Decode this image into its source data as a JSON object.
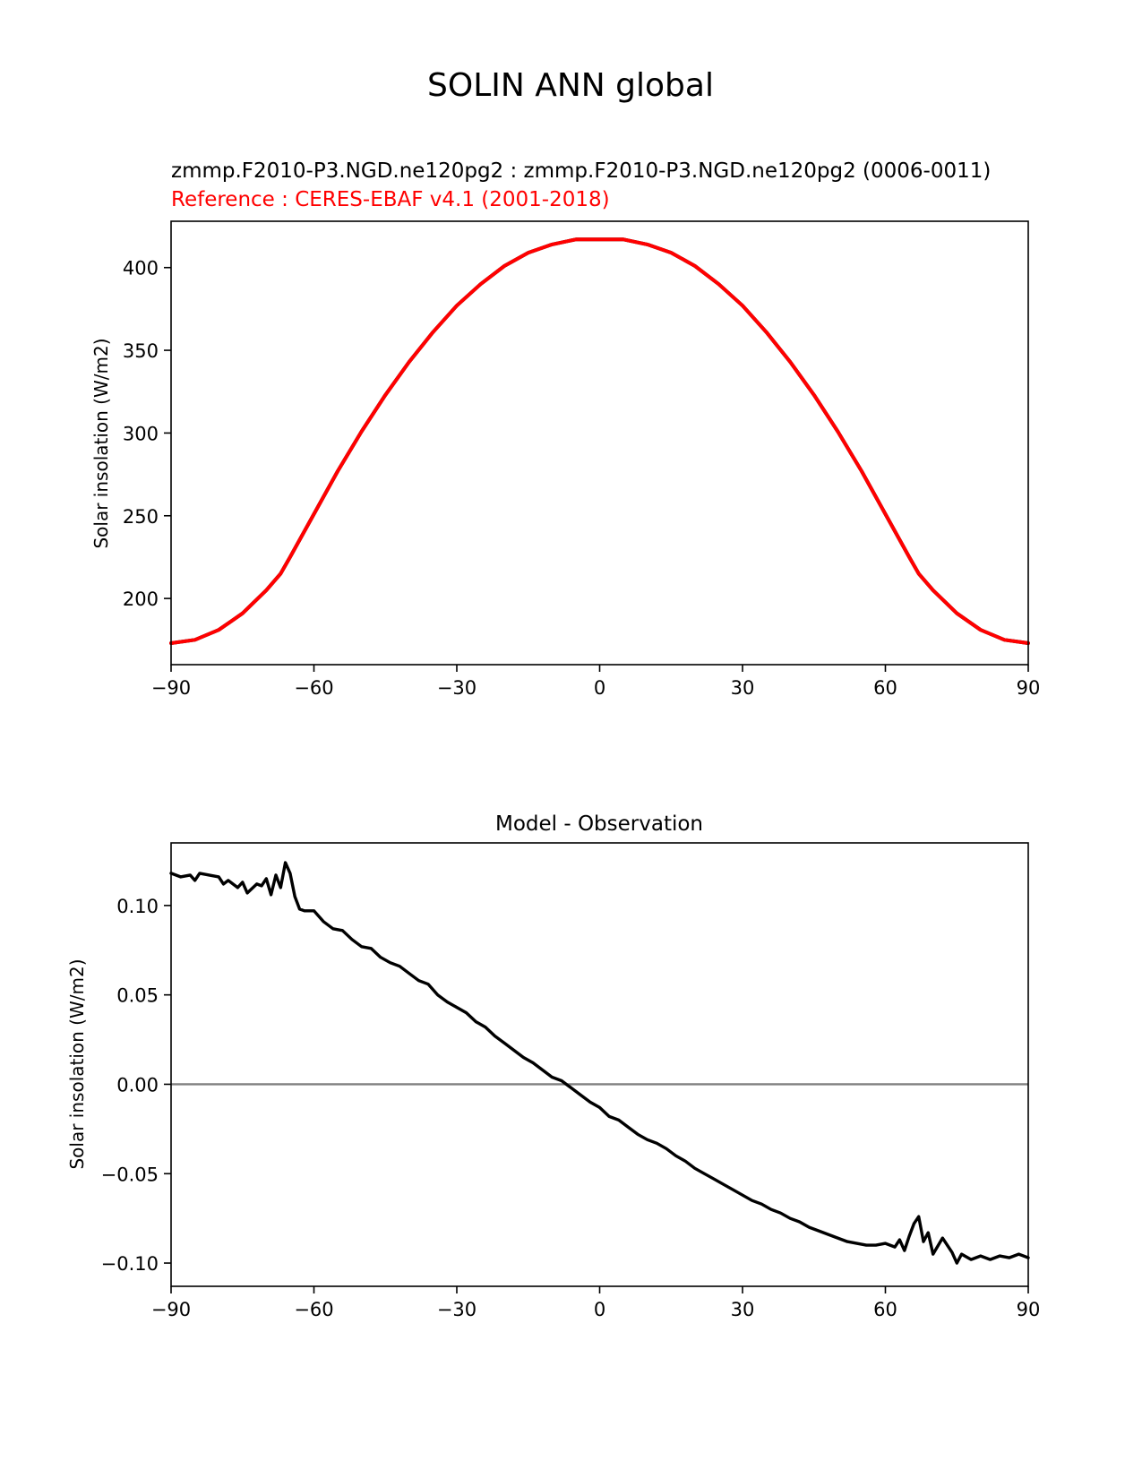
{
  "figure": {
    "title": "SOLIN ANN global"
  },
  "chart_data": [
    {
      "type": "line",
      "title_lines": [
        {
          "text": "zmmp.F2010-P3.NGD.ne120pg2 : zmmp.F2010-P3.NGD.ne120pg2 (0006-0011)",
          "color": "#000000"
        },
        {
          "text": "Reference : CERES-EBAF v4.1 (2001-2018)",
          "color": "#ff0000"
        }
      ],
      "xlabel": "",
      "ylabel": "Solar insolation (W/m2)",
      "xlim": [
        -90,
        90
      ],
      "ylim": [
        160,
        428
      ],
      "xticks": [
        -90,
        -60,
        -30,
        0,
        30,
        60,
        90
      ],
      "xtick_labels": [
        "−90",
        "−60",
        "−30",
        "0",
        "30",
        "60",
        "90"
      ],
      "yticks": [
        200,
        250,
        300,
        350,
        400
      ],
      "ytick_labels": [
        "200",
        "250",
        "300",
        "350",
        "400"
      ],
      "grid": false,
      "series": [
        {
          "color": "#000000",
          "x": [
            -90,
            -85,
            -80,
            -75,
            -70,
            -67,
            -65,
            -60,
            -55,
            -50,
            -45,
            -40,
            -35,
            -30,
            -25,
            -20,
            -15,
            -10,
            -5,
            0,
            5,
            10,
            15,
            20,
            25,
            30,
            35,
            40,
            45,
            50,
            55,
            60,
            65,
            67,
            70,
            75,
            80,
            85,
            90
          ],
          "y": [
            173,
            175,
            181,
            191,
            205,
            215,
            225,
            251,
            277,
            301,
            323,
            343,
            361,
            377,
            390,
            401,
            409,
            414,
            417,
            417,
            417,
            414,
            409,
            401,
            390,
            377,
            361,
            343,
            323,
            301,
            277,
            251,
            225,
            215,
            205,
            191,
            181,
            175,
            173
          ]
        },
        {
          "color": "#ff0000",
          "x": [
            -90,
            -85,
            -80,
            -75,
            -70,
            -67,
            -65,
            -60,
            -55,
            -50,
            -45,
            -40,
            -35,
            -30,
            -25,
            -20,
            -15,
            -10,
            -5,
            0,
            5,
            10,
            15,
            20,
            25,
            30,
            35,
            40,
            45,
            50,
            55,
            60,
            65,
            67,
            70,
            75,
            80,
            85,
            90
          ],
          "y": [
            173,
            175,
            181,
            191,
            205,
            215,
            225,
            251,
            277,
            301,
            323,
            343,
            361,
            377,
            390,
            401,
            409,
            414,
            417,
            417,
            417,
            414,
            409,
            401,
            390,
            377,
            361,
            343,
            323,
            301,
            277,
            251,
            225,
            215,
            205,
            191,
            181,
            175,
            173
          ]
        }
      ]
    },
    {
      "type": "line",
      "title": "Model - Observation",
      "xlabel": "",
      "ylabel": "Solar insolation (W/m2)",
      "xlim": [
        -90,
        90
      ],
      "ylim": [
        -0.113,
        0.135
      ],
      "xticks": [
        -90,
        -60,
        -30,
        0,
        30,
        60,
        90
      ],
      "xtick_labels": [
        "−90",
        "−60",
        "−30",
        "0",
        "30",
        "60",
        "90"
      ],
      "yticks": [
        -0.1,
        -0.05,
        0.0,
        0.05,
        0.1
      ],
      "ytick_labels": [
        "−0.10",
        "−0.05",
        "0.00",
        "0.05",
        "0.10"
      ],
      "grid": false,
      "zero_line": {
        "y": 0,
        "color": "#808080"
      },
      "series": [
        {
          "color": "#000000",
          "x": [
            -90,
            -88,
            -86,
            -85,
            -84,
            -82,
            -80,
            -79,
            -78,
            -76,
            -75,
            -74,
            -72,
            -71,
            -70,
            -69,
            -68,
            -67,
            -66,
            -65,
            -64,
            -63,
            -62,
            -60,
            -58,
            -56,
            -54,
            -52,
            -50,
            -48,
            -46,
            -44,
            -42,
            -40,
            -38,
            -36,
            -34,
            -32,
            -30,
            -28,
            -26,
            -24,
            -22,
            -20,
            -18,
            -16,
            -14,
            -12,
            -10,
            -8,
            -7,
            -6,
            -4,
            -2,
            0,
            2,
            4,
            6,
            8,
            10,
            12,
            14,
            16,
            18,
            20,
            22,
            24,
            26,
            28,
            30,
            32,
            34,
            36,
            38,
            40,
            42,
            44,
            46,
            48,
            50,
            52,
            54,
            56,
            58,
            60,
            62,
            63,
            64,
            65,
            66,
            67,
            68,
            69,
            70,
            72,
            74,
            75,
            76,
            78,
            80,
            82,
            84,
            86,
            88,
            90
          ],
          "y": [
            0.118,
            0.116,
            0.117,
            0.114,
            0.118,
            0.117,
            0.116,
            0.112,
            0.114,
            0.11,
            0.113,
            0.107,
            0.112,
            0.111,
            0.115,
            0.106,
            0.117,
            0.11,
            0.124,
            0.118,
            0.105,
            0.098,
            0.097,
            0.097,
            0.091,
            0.087,
            0.086,
            0.081,
            0.077,
            0.076,
            0.071,
            0.068,
            0.066,
            0.062,
            0.058,
            0.056,
            0.05,
            0.046,
            0.043,
            0.04,
            0.035,
            0.032,
            0.027,
            0.023,
            0.019,
            0.015,
            0.012,
            0.008,
            0.004,
            0.002,
            0.0,
            -0.002,
            -0.006,
            -0.01,
            -0.013,
            -0.018,
            -0.02,
            -0.024,
            -0.028,
            -0.031,
            -0.033,
            -0.036,
            -0.04,
            -0.043,
            -0.047,
            -0.05,
            -0.053,
            -0.056,
            -0.059,
            -0.062,
            -0.065,
            -0.067,
            -0.07,
            -0.072,
            -0.075,
            -0.077,
            -0.08,
            -0.082,
            -0.084,
            -0.086,
            -0.088,
            -0.089,
            -0.09,
            -0.09,
            -0.089,
            -0.091,
            -0.087,
            -0.093,
            -0.085,
            -0.078,
            -0.074,
            -0.088,
            -0.083,
            -0.095,
            -0.086,
            -0.094,
            -0.1,
            -0.095,
            -0.098,
            -0.096,
            -0.098,
            -0.096,
            -0.097,
            -0.095,
            -0.097
          ]
        }
      ]
    }
  ]
}
